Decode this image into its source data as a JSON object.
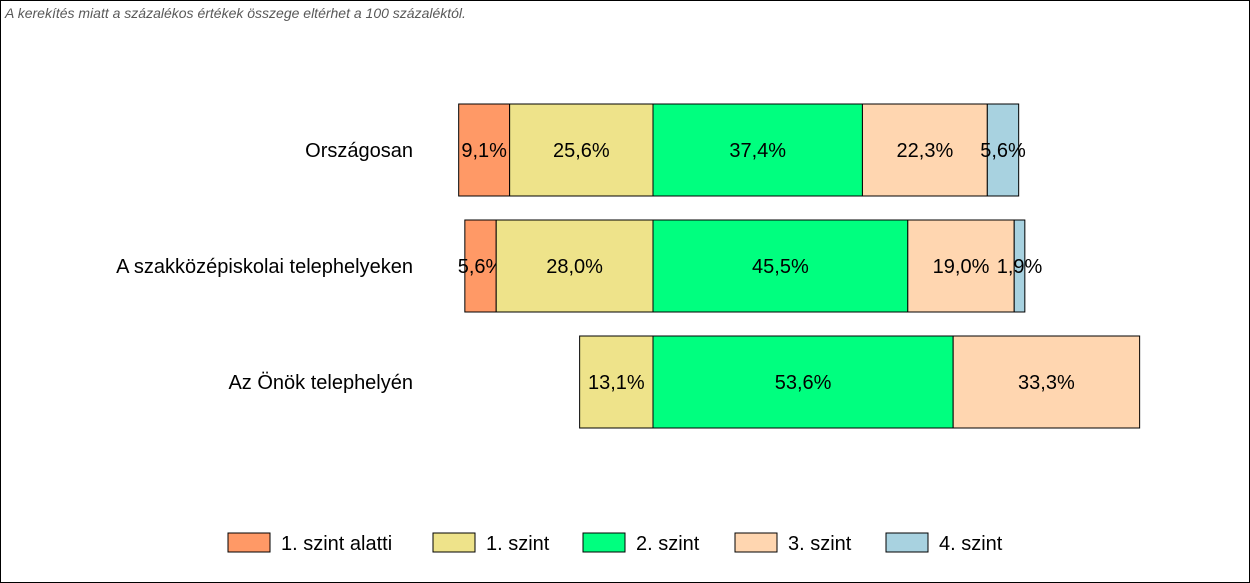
{
  "note": "A kerekítés miatt a  százalékos értékek összege eltérhet a 100 százaléktól.",
  "chart_data": {
    "type": "bar",
    "orientation": "horizontal",
    "stacked": true,
    "centered_on_series": "2. szint",
    "categories": [
      "Országosan",
      "A szakközépiskolai telephelyeken",
      "Az Önök telephelyén"
    ],
    "series": [
      {
        "name": "1. szint alatti",
        "color": "#FF9966",
        "values": [
          9.1,
          5.6,
          null
        ],
        "labels": [
          "9,1%",
          "5,6%",
          ""
        ]
      },
      {
        "name": "1. szint",
        "color": "#EEE38A",
        "values": [
          25.6,
          28.0,
          13.1
        ],
        "labels": [
          "25,6%",
          "28,0%",
          "13,1%"
        ]
      },
      {
        "name": "2. szint",
        "color": "#00FF7F",
        "values": [
          37.4,
          45.5,
          53.6
        ],
        "labels": [
          "37,4%",
          "45,5%",
          "53,6%"
        ]
      },
      {
        "name": "3. szint",
        "color": "#FFD6B0",
        "values": [
          22.3,
          19.0,
          33.3
        ],
        "labels": [
          "22,3%",
          "19,0%",
          "33,3%"
        ]
      },
      {
        "name": "4. szint",
        "color": "#A8D2E0",
        "values": [
          5.6,
          1.9,
          null
        ],
        "labels": [
          "5,6%",
          "1,9%",
          ""
        ]
      }
    ],
    "legend_position": "bottom",
    "grid": false
  }
}
